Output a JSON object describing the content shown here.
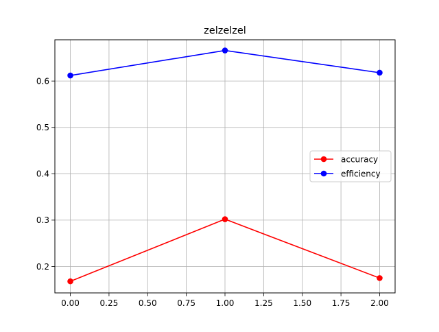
{
  "chart_data": {
    "type": "line",
    "title": "zelzelzel",
    "xlabel": "",
    "ylabel": "",
    "x": [
      0,
      1,
      2
    ],
    "xlim": [
      -0.1,
      2.1
    ],
    "ylim": [
      0.143,
      0.689
    ],
    "xticks": [
      0.0,
      0.25,
      0.5,
      0.75,
      1.0,
      1.25,
      1.5,
      1.75,
      2.0
    ],
    "xtick_labels": [
      "0.00",
      "0.25",
      "0.50",
      "0.75",
      "1.00",
      "1.25",
      "1.50",
      "1.75",
      "2.00"
    ],
    "yticks": [
      0.2,
      0.3,
      0.4,
      0.5,
      0.6
    ],
    "ytick_labels": [
      "0.2",
      "0.3",
      "0.4",
      "0.5",
      "0.6"
    ],
    "grid": true,
    "legend_position": "center-right",
    "series": [
      {
        "name": "accuracy",
        "color": "#ff0000",
        "marker": "circle",
        "values": [
          0.168,
          0.302,
          0.175
        ]
      },
      {
        "name": "efficiency",
        "color": "#0000ff",
        "marker": "circle",
        "values": [
          0.612,
          0.666,
          0.618
        ]
      }
    ]
  }
}
